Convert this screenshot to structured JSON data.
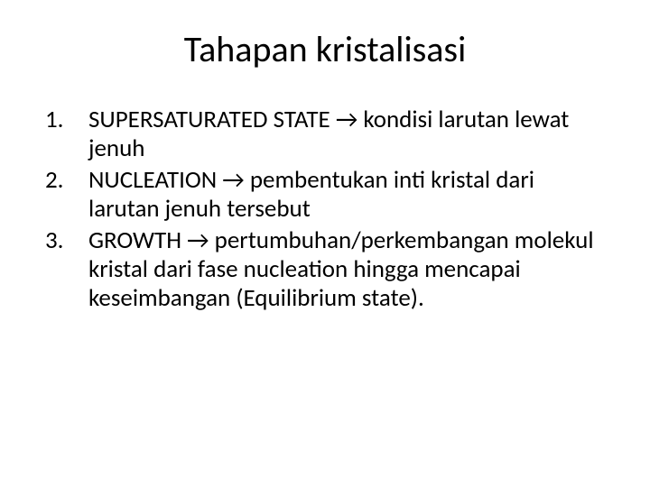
{
  "background_color": "#ffffff",
  "text_color": "#000000",
  "title": "Tahapan kristalisasi",
  "title_fontsize": 40,
  "body_fontsize": 27,
  "arrow_glyph": "→",
  "items": [
    {
      "n": "1.",
      "lead": "SUPERSATURATED STATE ",
      "rest": " kondisi larutan lewat jenuh"
    },
    {
      "n": "2.",
      "lead": "NUCLEATION ",
      "rest": " pembentukan inti kristal dari larutan jenuh tersebut"
    },
    {
      "n": "3.",
      "lead": "GROWTH ",
      "rest": " pertumbuhan/perkembangan molekul kristal dari fase nucleation hingga mencapai keseimbangan (Equilibrium state)."
    }
  ]
}
